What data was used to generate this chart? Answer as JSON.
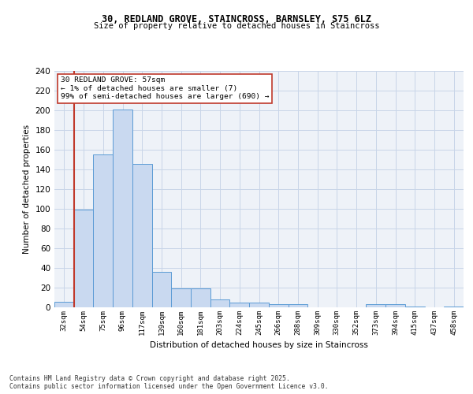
{
  "title_line1": "30, REDLAND GROVE, STAINCROSS, BARNSLEY, S75 6LZ",
  "title_line2": "Size of property relative to detached houses in Staincross",
  "xlabel": "Distribution of detached houses by size in Staincross",
  "ylabel": "Number of detached properties",
  "categories": [
    "32sqm",
    "54sqm",
    "75sqm",
    "96sqm",
    "117sqm",
    "139sqm",
    "160sqm",
    "181sqm",
    "203sqm",
    "224sqm",
    "245sqm",
    "266sqm",
    "288sqm",
    "309sqm",
    "330sqm",
    "352sqm",
    "373sqm",
    "394sqm",
    "415sqm",
    "437sqm",
    "458sqm"
  ],
  "values": [
    6,
    99,
    155,
    201,
    146,
    36,
    19,
    19,
    8,
    5,
    5,
    3,
    3,
    0,
    0,
    0,
    3,
    3,
    1,
    0,
    1
  ],
  "bar_color": "#c9d9f0",
  "bar_edge_color": "#5b9bd5",
  "annotation_text_line1": "30 REDLAND GROVE: 57sqm",
  "annotation_text_line2": "← 1% of detached houses are smaller (7)",
  "annotation_text_line3": "99% of semi-detached houses are larger (690) →",
  "vline_color": "#c0392b",
  "vline_x_index": 1,
  "ylim": [
    0,
    240
  ],
  "yticks": [
    0,
    20,
    40,
    60,
    80,
    100,
    120,
    140,
    160,
    180,
    200,
    220,
    240
  ],
  "grid_color": "#c8d5e8",
  "bg_color": "#eef2f8",
  "footer_line1": "Contains HM Land Registry data © Crown copyright and database right 2025.",
  "footer_line2": "Contains public sector information licensed under the Open Government Licence v3.0.",
  "annotation_box_color": "#ffffff",
  "annotation_box_edge": "#c0392b"
}
